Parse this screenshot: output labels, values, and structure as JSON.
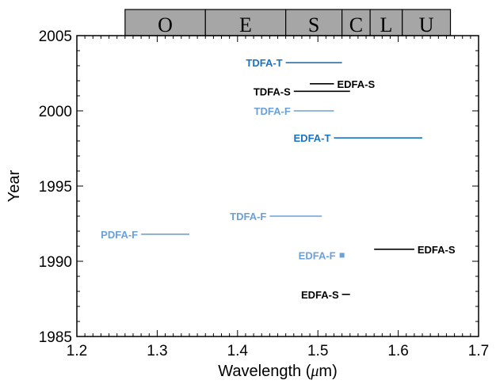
{
  "chart_data": {
    "type": "line",
    "xlabel_prefix": "Wavelength (",
    "xlabel_mu": "μ",
    "xlabel_suffix": "m)",
    "ylabel": "Year",
    "xlim": [
      1.2,
      1.7
    ],
    "ylim": [
      1985,
      2005
    ],
    "xticks": [
      "1.2",
      "1.3",
      "1.4",
      "1.5",
      "1.6",
      "1.7"
    ],
    "yticks": [
      "1985",
      "1990",
      "1995",
      "2000",
      "2005"
    ],
    "bands": [
      {
        "label": "O",
        "x0": 1.26,
        "x1": 1.36
      },
      {
        "label": "E",
        "x0": 1.36,
        "x1": 1.46
      },
      {
        "label": "S",
        "x0": 1.46,
        "x1": 1.53
      },
      {
        "label": "C",
        "x0": 1.53,
        "x1": 1.565
      },
      {
        "label": "L",
        "x0": 1.565,
        "x1": 1.605
      },
      {
        "label": "U",
        "x0": 1.605,
        "x1": 1.665
      }
    ],
    "colors": {
      "T": "#1a73c0",
      "F": "#6ba0d8",
      "S": "#000000",
      "band_fill": "#a6a6a6"
    },
    "series": [
      {
        "label": "TDFA-T",
        "x0": 1.46,
        "x1": 1.53,
        "year": 2003.2,
        "color_key": "T",
        "label_side": "left"
      },
      {
        "label": "EDFA-S",
        "x0": 1.49,
        "x1": 1.52,
        "year": 2001.8,
        "color_key": "S",
        "label_side": "right"
      },
      {
        "label": "TDFA-S",
        "x0": 1.47,
        "x1": 1.54,
        "year": 2001.3,
        "color_key": "S",
        "label_side": "left"
      },
      {
        "label": "TDFA-F",
        "x0": 1.47,
        "x1": 1.52,
        "year": 2000.0,
        "color_key": "F",
        "label_side": "left"
      },
      {
        "label": "EDFA-T",
        "x0": 1.52,
        "x1": 1.63,
        "year": 1998.2,
        "color_key": "T",
        "label_side": "left"
      },
      {
        "label": "TDFA-F",
        "x0": 1.44,
        "x1": 1.505,
        "year": 1993.0,
        "color_key": "F",
        "label_side": "left"
      },
      {
        "label": "PDFA-F",
        "x0": 1.28,
        "x1": 1.34,
        "year": 1991.8,
        "color_key": "F",
        "label_side": "left"
      },
      {
        "label": "EDFA-S",
        "x0": 1.57,
        "x1": 1.62,
        "year": 1990.8,
        "color_key": "S",
        "label_side": "right"
      },
      {
        "label": "EDFA-F",
        "x0": 1.53,
        "x1": 1.533,
        "year": 1990.4,
        "color_key": "F",
        "label_side": "left",
        "marker": "square"
      },
      {
        "label": "EDFA-S",
        "x0": 1.53,
        "x1": 1.54,
        "year": 1987.8,
        "color_key": "S",
        "label_side": "left"
      }
    ]
  }
}
